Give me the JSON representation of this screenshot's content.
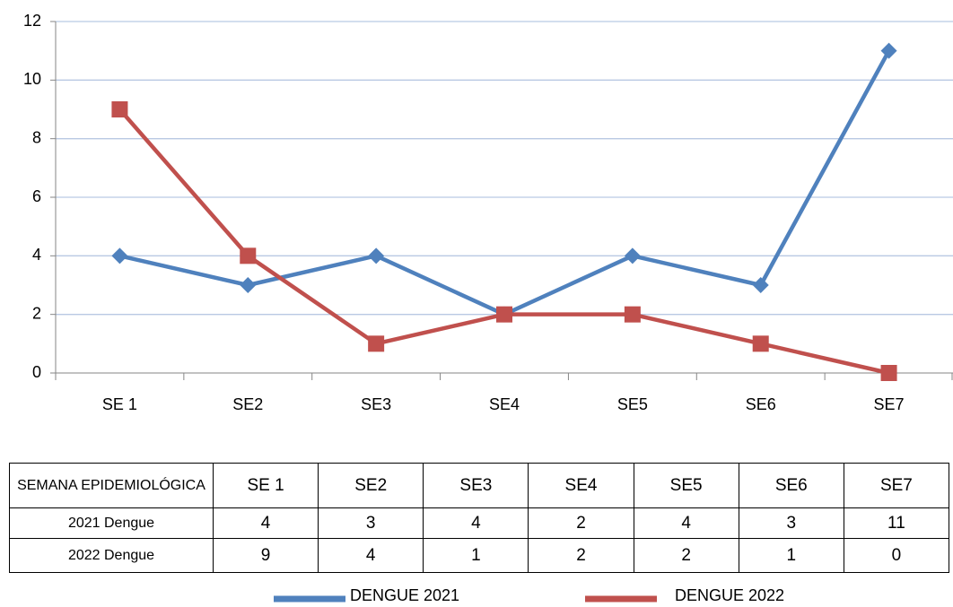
{
  "chart_data": {
    "type": "line",
    "categories": [
      "SE 1",
      "SE2",
      "SE3",
      "SE4",
      "SE5",
      "SE6",
      "SE7"
    ],
    "series": [
      {
        "name": "DENGUE 2021",
        "color": "#4f81bd",
        "marker": "diamond",
        "values": [
          4,
          3,
          4,
          2,
          4,
          3,
          11
        ]
      },
      {
        "name": "DENGUE 2022",
        "color": "#c0504d",
        "marker": "square",
        "values": [
          9,
          4,
          1,
          2,
          2,
          1,
          0
        ]
      }
    ],
    "ylim": [
      0,
      12
    ],
    "yticks": [
      0,
      2,
      4,
      6,
      8,
      10,
      12
    ],
    "grid": true,
    "legend": "bottom",
    "table": {
      "header": "SEMANA EPIDEMIOLÓGICA",
      "row_labels": [
        "2021 Dengue",
        "2022 Dengue"
      ]
    }
  }
}
